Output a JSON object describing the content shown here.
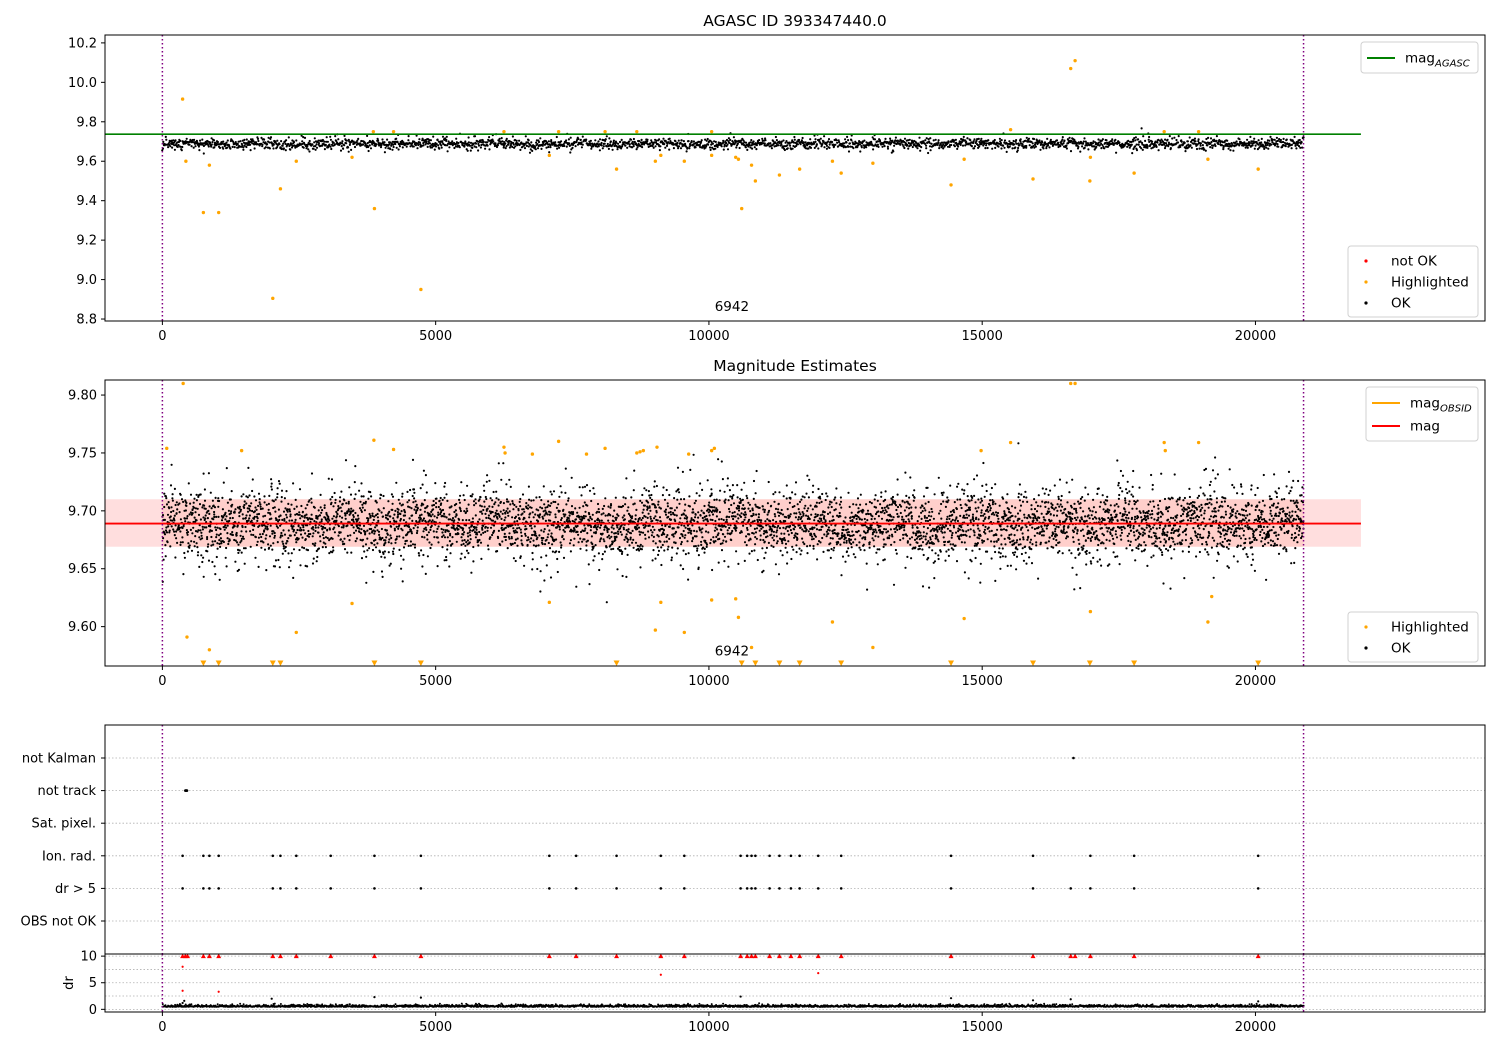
{
  "colors": {
    "ok": "#000000",
    "highlighted": "#ffa500",
    "not_ok": "#ff0000",
    "agasc_line": "#008000",
    "mag_line": "#ff0000",
    "obsid_line": "#ffa500",
    "band": "#ffc8c8",
    "obs_boundary": "#800080",
    "grid": "#b0b0b0"
  },
  "chart_data": [
    {
      "type": "scatter",
      "title": "AGASC ID 393347440.0",
      "xlim": [
        -1050,
        24200
      ],
      "ylim": [
        8.79,
        10.24
      ],
      "xticks": [
        0,
        5000,
        10000,
        15000,
        20000
      ],
      "yticks": [
        8.8,
        9.0,
        9.2,
        9.4,
        9.6,
        9.8,
        10.0,
        10.2
      ],
      "ytick_labels": [
        "8.8",
        "9.0",
        "9.2",
        "9.4",
        "9.6",
        "9.8",
        "10.0",
        "10.2"
      ],
      "obs_boundaries": [
        0,
        20880
      ],
      "obsid_annotation": {
        "text": "6942",
        "x": 10420,
        "y": 8.84
      },
      "agasc_mag": {
        "value": 9.737,
        "x_range": [
          -1050,
          21930
        ]
      },
      "ok_band": {
        "x_range": [
          0,
          20880
        ],
        "center": 9.689,
        "halfwidth": 0.014,
        "noise": 0.022,
        "n": 2600
      },
      "highlighted": [
        [
          370,
          9.915
        ],
        [
          430,
          9.6
        ],
        [
          750,
          9.34
        ],
        [
          860,
          9.58
        ],
        [
          1030,
          9.34
        ],
        [
          2020,
          8.905
        ],
        [
          2160,
          9.46
        ],
        [
          2450,
          9.6
        ],
        [
          3470,
          9.62
        ],
        [
          3880,
          9.36
        ],
        [
          3860,
          9.75
        ],
        [
          4230,
          9.75
        ],
        [
          4730,
          8.95
        ],
        [
          6250,
          9.75
        ],
        [
          7080,
          9.63
        ],
        [
          7250,
          9.75
        ],
        [
          8100,
          9.75
        ],
        [
          8310,
          9.56
        ],
        [
          8680,
          9.75
        ],
        [
          9020,
          9.6
        ],
        [
          9120,
          9.63
        ],
        [
          9550,
          9.6
        ],
        [
          10050,
          9.63
        ],
        [
          10050,
          9.75
        ],
        [
          10490,
          9.62
        ],
        [
          10540,
          9.61
        ],
        [
          10600,
          9.36
        ],
        [
          10780,
          9.58
        ],
        [
          10850,
          9.5
        ],
        [
          11290,
          9.53
        ],
        [
          11660,
          9.56
        ],
        [
          12260,
          9.6
        ],
        [
          12420,
          9.54
        ],
        [
          13000,
          9.59
        ],
        [
          14430,
          9.48
        ],
        [
          14670,
          9.61
        ],
        [
          15520,
          9.76
        ],
        [
          15930,
          9.51
        ],
        [
          16620,
          10.07
        ],
        [
          16700,
          10.11
        ],
        [
          16980,
          9.62
        ],
        [
          16970,
          9.5
        ],
        [
          17780,
          9.54
        ],
        [
          18330,
          9.75
        ],
        [
          18960,
          9.75
        ],
        [
          19130,
          9.61
        ],
        [
          20050,
          9.56
        ]
      ],
      "legend": [
        {
          "label": "mag",
          "sub": "AGASC",
          "kind": "line",
          "color": "#008000"
        }
      ],
      "legend2": [
        {
          "label": "not OK",
          "kind": "point",
          "color": "#ff0000"
        },
        {
          "label": "Highlighted",
          "kind": "point",
          "color": "#ffa500"
        },
        {
          "label": "OK",
          "kind": "point",
          "color": "#000000"
        }
      ]
    },
    {
      "type": "scatter",
      "title": "Magnitude Estimates",
      "xlim": [
        -1050,
        24200
      ],
      "ylim": [
        9.566,
        9.813
      ],
      "xticks": [
        0,
        5000,
        10000,
        15000,
        20000
      ],
      "yticks": [
        9.6,
        9.65,
        9.7,
        9.75,
        9.8
      ],
      "ytick_labels": [
        "9.60",
        "9.65",
        "9.70",
        "9.75",
        "9.80"
      ],
      "obs_boundaries": [
        0,
        20880
      ],
      "obsid_annotation": {
        "text": "6942",
        "x": 10420,
        "y": 9.575
      },
      "mag_line": {
        "value": 9.689,
        "x_range": [
          -1050,
          21930
        ]
      },
      "band": {
        "low": 9.669,
        "high": 9.71,
        "x_range": [
          -1050,
          21930
        ]
      },
      "ok_band": {
        "x_range": [
          0,
          20880
        ],
        "center": 9.689,
        "halfwidth": 0.014,
        "noise": 0.024,
        "n": 5200
      },
      "highlighted": [
        [
          80,
          9.754
        ],
        [
          380,
          9.81
        ],
        [
          450,
          9.591
        ],
        [
          750,
          9.567
        ],
        [
          860,
          9.58
        ],
        [
          1030,
          9.567
        ],
        [
          1450,
          9.752
        ],
        [
          2020,
          9.567
        ],
        [
          2160,
          9.567
        ],
        [
          2450,
          9.595
        ],
        [
          3470,
          9.62
        ],
        [
          3870,
          9.761
        ],
        [
          3880,
          9.567
        ],
        [
          4230,
          9.753
        ],
        [
          4730,
          9.567
        ],
        [
          6250,
          9.755
        ],
        [
          6270,
          9.75
        ],
        [
          6770,
          9.749
        ],
        [
          7080,
          9.621
        ],
        [
          7250,
          9.76
        ],
        [
          7760,
          9.749
        ],
        [
          8100,
          9.754
        ],
        [
          8310,
          9.567
        ],
        [
          8680,
          9.75
        ],
        [
          8740,
          9.751
        ],
        [
          8800,
          9.752
        ],
        [
          9020,
          9.597
        ],
        [
          9050,
          9.755
        ],
        [
          9120,
          9.621
        ],
        [
          9550,
          9.595
        ],
        [
          9630,
          9.749
        ],
        [
          10050,
          9.623
        ],
        [
          10050,
          9.752
        ],
        [
          10100,
          9.754
        ],
        [
          10490,
          9.624
        ],
        [
          10540,
          9.608
        ],
        [
          10600,
          9.567
        ],
        [
          10780,
          9.582
        ],
        [
          10850,
          9.567
        ],
        [
          11290,
          9.567
        ],
        [
          11660,
          9.567
        ],
        [
          12260,
          9.604
        ],
        [
          12420,
          9.567
        ],
        [
          13000,
          9.582
        ],
        [
          14430,
          9.567
        ],
        [
          14670,
          9.607
        ],
        [
          14980,
          9.752
        ],
        [
          15520,
          9.759
        ],
        [
          15930,
          9.567
        ],
        [
          16620,
          9.81
        ],
        [
          16700,
          9.81
        ],
        [
          16980,
          9.613
        ],
        [
          16970,
          9.567
        ],
        [
          17780,
          9.567
        ],
        [
          18330,
          9.759
        ],
        [
          18350,
          9.752
        ],
        [
          18960,
          9.759
        ],
        [
          19130,
          9.604
        ],
        [
          19200,
          9.626
        ],
        [
          20050,
          9.567
        ]
      ],
      "legend": [
        {
          "label": "mag",
          "sub": "OBSID",
          "kind": "line",
          "color": "#ffa500"
        },
        {
          "label": "mag",
          "sub": "",
          "kind": "line",
          "color": "#ff0000"
        }
      ],
      "legend2": [
        {
          "label": "Highlighted",
          "kind": "point",
          "color": "#ffa500"
        },
        {
          "label": "OK",
          "kind": "point",
          "color": "#000000"
        }
      ]
    },
    {
      "type": "scatter",
      "title": "",
      "xlim": [
        -1050,
        24200
      ],
      "categories": [
        "not Kalman",
        "not track",
        "Sat. pixel.",
        "Ion. rad.",
        "dr > 5",
        "OBS not OK"
      ],
      "obs_boundaries": [
        0,
        20880
      ],
      "flags": {
        "not Kalman": [
          16670
        ],
        "not track": [
          420,
          430,
          440,
          450
        ],
        "Sat. pixel.": [],
        "Ion. rad.": [
          370,
          750,
          860,
          1030,
          2020,
          2160,
          2450,
          3080,
          3880,
          4730,
          7080,
          7570,
          8310,
          9120,
          9550,
          10580,
          10700,
          10780,
          10850,
          11110,
          11290,
          11500,
          11660,
          12000,
          12420,
          14430,
          15930,
          16980,
          17780,
          20050
        ],
        "dr > 5": [
          370,
          750,
          860,
          1030,
          2020,
          2160,
          2450,
          3080,
          3880,
          4730,
          7080,
          7570,
          8310,
          9120,
          9550,
          10580,
          10700,
          10780,
          10850,
          11110,
          11290,
          11500,
          11660,
          12000,
          12420,
          14430,
          15930,
          16620,
          16980,
          17780,
          20050
        ],
        "OBS not OK": []
      }
    },
    {
      "type": "scatter",
      "ylabel": "dr",
      "xlim": [
        -1050,
        24200
      ],
      "ylim": [
        -0.5,
        10.4
      ],
      "xticks": [
        0,
        5000,
        10000,
        15000,
        20000
      ],
      "yticks": [
        0,
        5,
        10
      ],
      "obs_boundaries": [
        0,
        20880
      ],
      "baseline": {
        "x_range": [
          0,
          20880
        ],
        "center": 0.45,
        "noise": 0.35,
        "n": 2600
      },
      "capped_red": [
        370,
        420,
        460,
        750,
        860,
        1030,
        2020,
        2160,
        2450,
        3080,
        3880,
        4730,
        7080,
        7570,
        8310,
        9120,
        9550,
        10580,
        10700,
        10780,
        10850,
        11110,
        11290,
        11500,
        11660,
        12000,
        12420,
        14430,
        15930,
        16620,
        16700,
        16980,
        17780,
        20050
      ],
      "red_points": [
        [
          370,
          3.5
        ],
        [
          370,
          8.0
        ],
        [
          1030,
          3.3
        ],
        [
          9120,
          6.5
        ],
        [
          12000,
          6.8
        ]
      ],
      "black_outliers": [
        [
          370,
          1.2
        ],
        [
          400,
          1.6
        ],
        [
          2000,
          2.0
        ],
        [
          3880,
          2.3
        ],
        [
          4730,
          2.2
        ],
        [
          10580,
          2.4
        ],
        [
          14430,
          2.1
        ],
        [
          15930,
          1.7
        ],
        [
          16620,
          1.9
        ],
        [
          20050,
          1.5
        ]
      ]
    }
  ]
}
